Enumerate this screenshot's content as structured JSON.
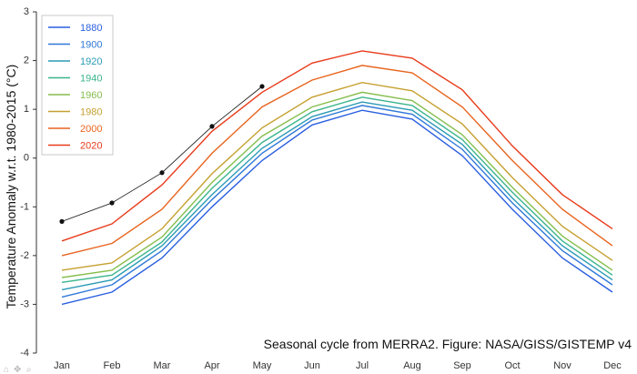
{
  "chart_data": {
    "type": "line",
    "caption": "Seasonal cycle from MERRA2. Figure: NASA/GISS/GISTEMP v4",
    "ylabel": "Temperature Anomaly w.r.t. 1980-2015 (°C)",
    "xlabel": "",
    "categories": [
      "Jan",
      "Feb",
      "Mar",
      "Apr",
      "May",
      "Jun",
      "Jul",
      "Aug",
      "Sep",
      "Oct",
      "Nov",
      "Dec"
    ],
    "ylim": [
      -4,
      3
    ],
    "yticks": [
      -4,
      -3,
      -2,
      -1,
      0,
      1,
      2,
      3
    ],
    "grid": false,
    "legend": {
      "placement": "top-left",
      "entries": [
        {
          "label": "1880",
          "color": "#2a5fe0"
        },
        {
          "label": "1900",
          "color": "#2f78d8"
        },
        {
          "label": "1920",
          "color": "#2a9bb5"
        },
        {
          "label": "1940",
          "color": "#3ab58c"
        },
        {
          "label": "1960",
          "color": "#86be4e"
        },
        {
          "label": "1980",
          "color": "#c6a030"
        },
        {
          "label": "2000",
          "color": "#e8641e"
        },
        {
          "label": "2020",
          "color": "#e83a1a"
        }
      ]
    },
    "series": [
      {
        "name": "1880",
        "color": "#2a5fe0",
        "values": [
          -3.0,
          -2.75,
          -2.05,
          -1.0,
          -0.05,
          0.68,
          0.98,
          0.8,
          0.05,
          -1.05,
          -2.05,
          -2.75
        ]
      },
      {
        "name": "1900",
        "color": "#2f78d8",
        "values": [
          -2.85,
          -2.6,
          -1.9,
          -0.85,
          0.1,
          0.78,
          1.08,
          0.9,
          0.18,
          -0.92,
          -1.9,
          -2.6
        ]
      },
      {
        "name": "1920",
        "color": "#2a9bb5",
        "values": [
          -2.7,
          -2.5,
          -1.8,
          -0.75,
          0.2,
          0.85,
          1.15,
          0.98,
          0.28,
          -0.82,
          -1.8,
          -2.5
        ]
      },
      {
        "name": "1940",
        "color": "#3ab58c",
        "values": [
          -2.55,
          -2.4,
          -1.72,
          -0.62,
          0.32,
          0.95,
          1.25,
          1.08,
          0.38,
          -0.7,
          -1.7,
          -2.4
        ]
      },
      {
        "name": "1960",
        "color": "#86be4e",
        "values": [
          -2.45,
          -2.3,
          -1.62,
          -0.5,
          0.45,
          1.05,
          1.35,
          1.18,
          0.48,
          -0.6,
          -1.6,
          -2.3
        ]
      },
      {
        "name": "1980",
        "color": "#c6a030",
        "values": [
          -2.3,
          -2.15,
          -1.45,
          -0.32,
          0.62,
          1.25,
          1.55,
          1.38,
          0.7,
          -0.4,
          -1.4,
          -2.1
        ]
      },
      {
        "name": "2000",
        "color": "#e8641e",
        "values": [
          -2.0,
          -1.75,
          -1.05,
          0.1,
          1.05,
          1.6,
          1.9,
          1.75,
          1.05,
          -0.05,
          -1.05,
          -1.8
        ]
      },
      {
        "name": "2020",
        "color": "#e83a1a",
        "values": [
          -1.7,
          -1.35,
          -0.55,
          0.55,
          1.35,
          1.95,
          2.2,
          2.05,
          1.4,
          0.25,
          -0.75,
          -1.45
        ]
      }
    ],
    "highlight_points": [
      {
        "x": "Jan",
        "y": -1.3
      },
      {
        "x": "Feb",
        "y": -0.92
      },
      {
        "x": "Mar",
        "y": -0.3
      },
      {
        "x": "Apr",
        "y": 0.65
      },
      {
        "x": "May",
        "y": 1.47
      }
    ]
  }
}
